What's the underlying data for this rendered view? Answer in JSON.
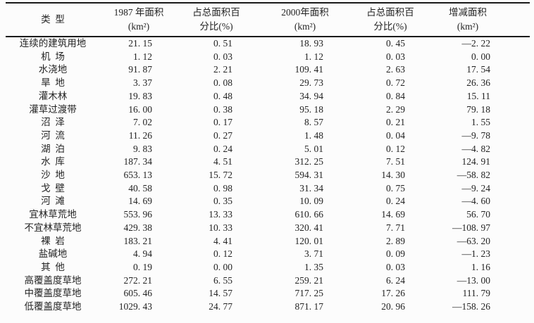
{
  "colors": {
    "background": "#fcfcfc",
    "text": "#232323",
    "rule_line": "#1a1a1a"
  },
  "table": {
    "headers": [
      {
        "line1": "类  型",
        "line2": ""
      },
      {
        "line1": "1987 年面积",
        "line2": "(km²)"
      },
      {
        "line1": "占总面积百",
        "line2": "分比(%)"
      },
      {
        "line1": "2000年面积",
        "line2": "(km²)"
      },
      {
        "line1": "占总面积百",
        "line2": "分比(%)"
      },
      {
        "line1": "增减面积",
        "line2": "(km²)"
      }
    ],
    "rows": [
      {
        "label": "连续的建筑用地",
        "a1987": "21. 15",
        "p1987": "0. 51",
        "a2000": "18. 93",
        "p2000": "0. 45",
        "change": "—2. 22"
      },
      {
        "label": "机  场",
        "a1987": "1. 12",
        "p1987": "0. 03",
        "a2000": "1. 12",
        "p2000": "0. 03",
        "change": "0. 00"
      },
      {
        "label": "水浇地",
        "a1987": "91. 87",
        "p1987": "2. 21",
        "a2000": "109. 41",
        "p2000": "2. 63",
        "change": "17. 54"
      },
      {
        "label": "旱  地",
        "a1987": "3. 37",
        "p1987": "0. 08",
        "a2000": "29. 73",
        "p2000": "0. 72",
        "change": "26. 36"
      },
      {
        "label": "灌木林",
        "a1987": "19. 83",
        "p1987": "0. 48",
        "a2000": "34. 94",
        "p2000": "0. 84",
        "change": "15. 11"
      },
      {
        "label": "灌草过渡带",
        "a1987": "16. 00",
        "p1987": "0. 38",
        "a2000": "95. 18",
        "p2000": "2. 29",
        "change": "79. 18"
      },
      {
        "label": "沼  泽",
        "a1987": "7. 02",
        "p1987": "0. 17",
        "a2000": "8. 57",
        "p2000": "0. 21",
        "change": "1. 55"
      },
      {
        "label": "河  流",
        "a1987": "11. 26",
        "p1987": "0. 27",
        "a2000": "1. 48",
        "p2000": "0. 04",
        "change": "—9. 78"
      },
      {
        "label": "湖  泊",
        "a1987": "9. 83",
        "p1987": "0. 24",
        "a2000": "5. 01",
        "p2000": "0. 12",
        "change": "—4. 82"
      },
      {
        "label": "水  库",
        "a1987": "187. 34",
        "p1987": "4. 51",
        "a2000": "312. 25",
        "p2000": "7. 51",
        "change": "124. 91"
      },
      {
        "label": "沙  地",
        "a1987": "653. 13",
        "p1987": "15. 72",
        "a2000": "594. 31",
        "p2000": "14. 30",
        "change": "—58. 82"
      },
      {
        "label": "戈  壁",
        "a1987": "40. 58",
        "p1987": "0. 98",
        "a2000": "31. 34",
        "p2000": "0. 75",
        "change": "—9. 24"
      },
      {
        "label": "河  滩",
        "a1987": "14. 69",
        "p1987": "0. 35",
        "a2000": "10. 09",
        "p2000": "0. 24",
        "change": "—4. 60"
      },
      {
        "label": "宜林草荒地",
        "a1987": "553. 96",
        "p1987": "13. 33",
        "a2000": "610. 66",
        "p2000": "14. 69",
        "change": "56. 70"
      },
      {
        "label": "不宜林草荒地",
        "a1987": "429. 38",
        "p1987": "10. 33",
        "a2000": "320. 41",
        "p2000": "7. 71",
        "change": "—108. 97"
      },
      {
        "label": "裸  岩",
        "a1987": "183. 21",
        "p1987": "4. 41",
        "a2000": "120. 01",
        "p2000": "2. 89",
        "change": "—63. 20"
      },
      {
        "label": "盐碱地",
        "a1987": "4. 94",
        "p1987": "0. 12",
        "a2000": "3. 71",
        "p2000": "0. 09",
        "change": "—1. 23"
      },
      {
        "label": "其  他",
        "a1987": "0. 19",
        "p1987": "0. 00",
        "a2000": "1. 35",
        "p2000": "0. 03",
        "change": "1. 16"
      },
      {
        "label": "高覆盖度草地",
        "a1987": "272. 21",
        "p1987": "6. 55",
        "a2000": "259. 21",
        "p2000": "6. 24",
        "change": "—13. 00"
      },
      {
        "label": "中覆盖度草地",
        "a1987": "605. 46",
        "p1987": "14. 57",
        "a2000": "717. 25",
        "p2000": "17. 26",
        "change": "111. 79"
      },
      {
        "label": "低覆盖度草地",
        "a1987": "1029. 43",
        "p1987": "24. 77",
        "a2000": "871. 17",
        "p2000": "20. 96",
        "change": "—158. 26"
      }
    ]
  }
}
